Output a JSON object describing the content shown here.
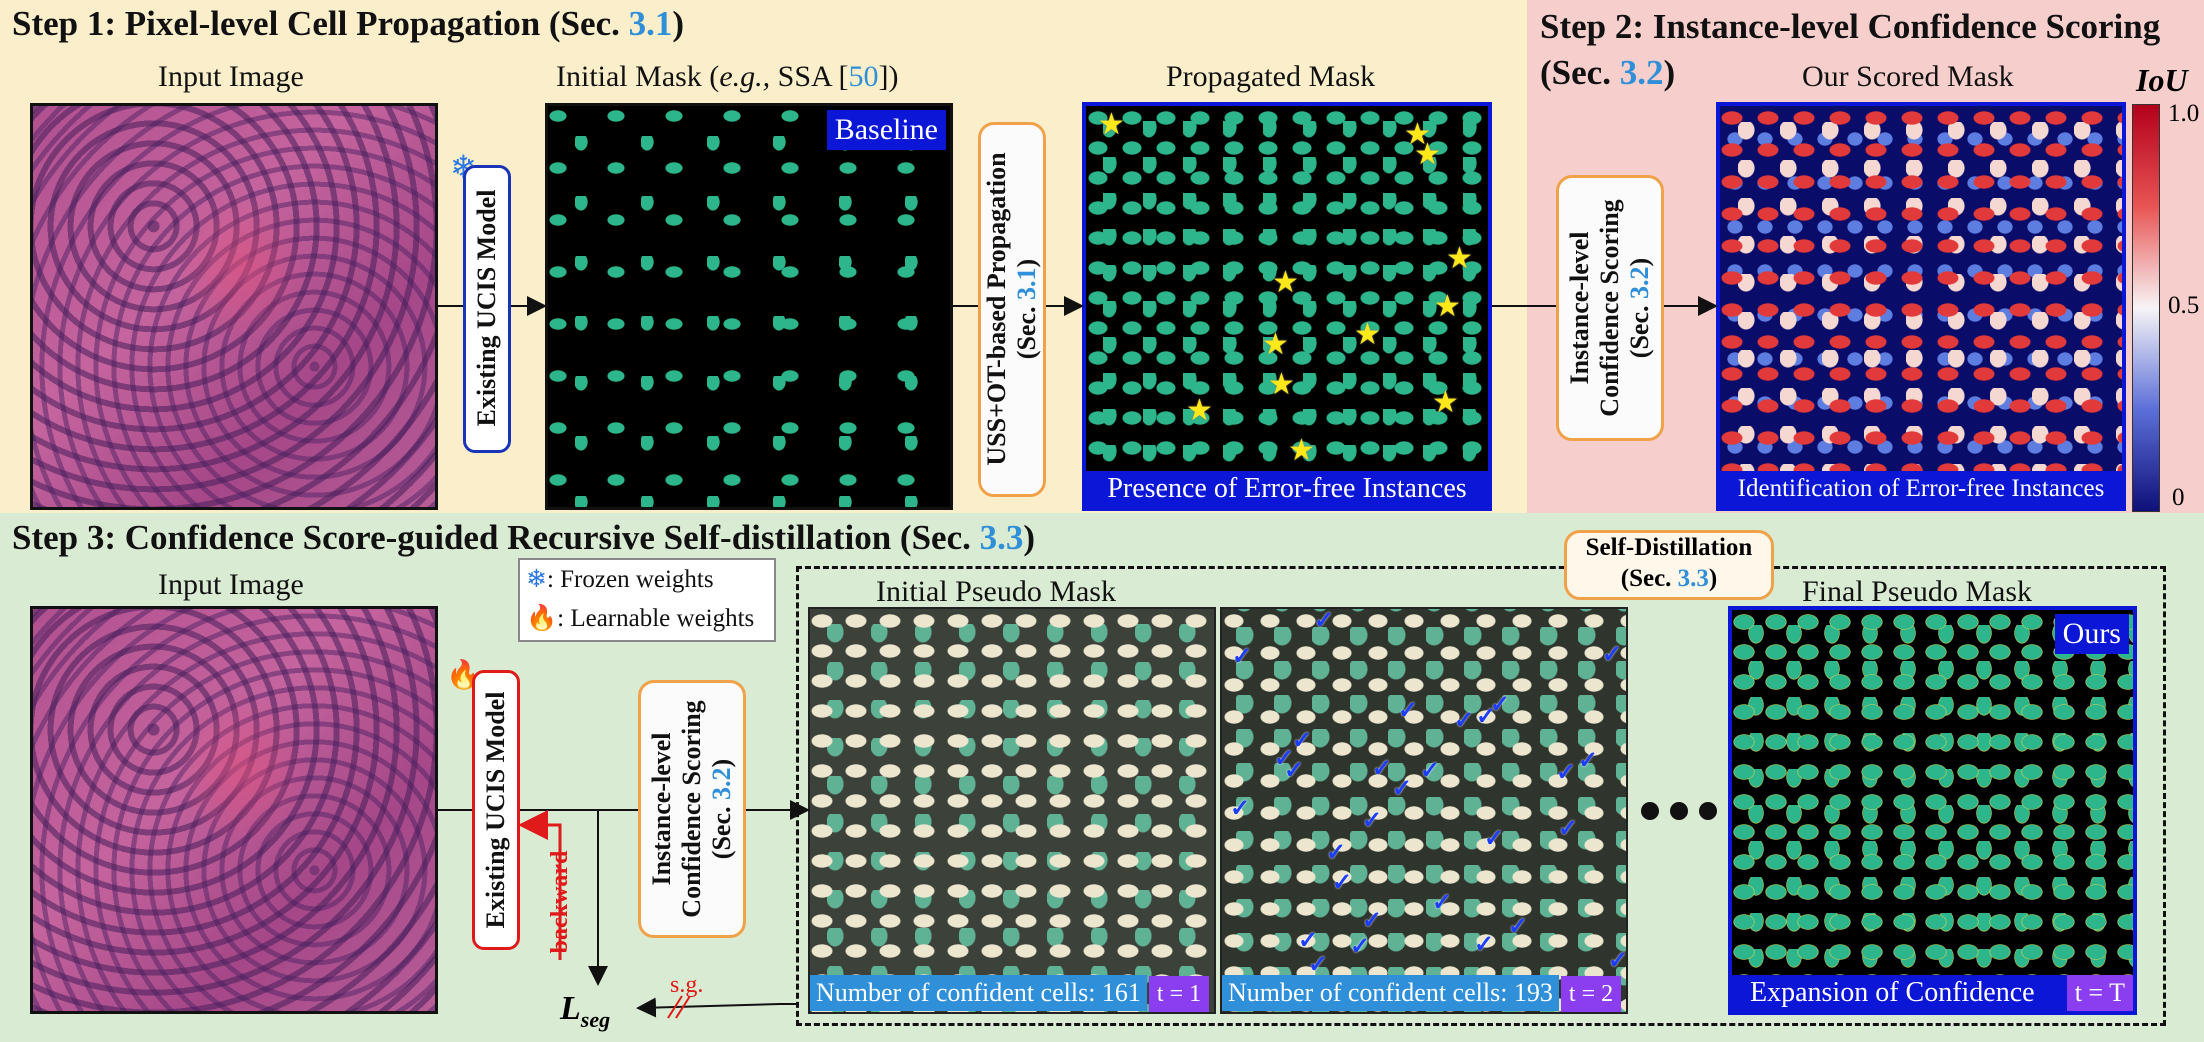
{
  "step1": {
    "title": "Step 1: Pixel-level Cell Propagation (Sec. ",
    "ref": "3.1",
    "close": ")"
  },
  "step2": {
    "title_line1": "Step 2: Instance-level Confidence Scoring",
    "title_line2": "(Sec. ",
    "ref": "3.2",
    "close": ")"
  },
  "step3": {
    "title": "Step 3: Confidence Score-guided Recursive Self-distillation (Sec. ",
    "ref": "3.3",
    "close": ")"
  },
  "captions": {
    "input_image": "Input Image",
    "initial_mask_pre": "Initial Mask (",
    "initial_mask_eg": "e.g.,",
    "initial_mask_mid": " SSA [",
    "initial_mask_ref": "50",
    "initial_mask_post": "])",
    "propagated_mask": "Propagated Mask",
    "scored_mask": "Our Scored Mask",
    "input_image_2": "Input Image",
    "initial_pseudo_mask": "Initial Pseudo Mask",
    "final_pseudo_mask": "Final Pseudo Mask"
  },
  "badges": {
    "baseline": "Baseline",
    "presence": "Presence of Error-free Instances",
    "identification": "Identification of Error-free Instances",
    "confident_161": "Number of confident cells: 161",
    "t1": "t = 1",
    "confident_193": "Number of confident cells: 193",
    "t2": "t = 2",
    "expansion": "Expansion of Confidence",
    "tT": "t = T",
    "ours": "Ours"
  },
  "boxes": {
    "existing_ucis": "Existing UCIS Model",
    "propagation_line1": "USS+OT-based Propagation",
    "propagation_line2": "(Sec. ",
    "propagation_ref": "3.1",
    "propagation_close": ")",
    "scoring_line1": "Instance-level",
    "scoring_line2": "Confidence Scoring",
    "scoring_line3": "(Sec. ",
    "scoring_ref": "3.2",
    "scoring_close": ")",
    "existing_ucis_2": "Existing UCIS Model",
    "scoring2_line1": "Instance-level",
    "scoring2_line2": "Confidence Scoring",
    "scoring2_line3": "(Sec. ",
    "scoring2_ref": "3.2",
    "scoring2_close": ")",
    "self_distill_line1": "Self-Distillation",
    "self_distill_line2": "(Sec. ",
    "self_distill_ref": "3.3",
    "self_distill_close": ")"
  },
  "legend": {
    "frozen": ": Frozen weights",
    "learnable": ": Learnable weights"
  },
  "loss": {
    "L": "L",
    "sub": "seg",
    "sg": "s.g.",
    "backward": "backward"
  },
  "colorbar": {
    "label": "IoU",
    "ticks": [
      "1.0",
      "0.5",
      "0"
    ]
  },
  "colors": {
    "step12_bg": "#fbefcb",
    "step2_bg": "#f6cfcc",
    "step3_bg": "#d9ebd2",
    "accent_blue": "#0b16d6",
    "ref_blue": "#2f8fd8",
    "purple": "#8a3ef0",
    "orange": "#f0a24a",
    "red": "#e01a1a"
  }
}
